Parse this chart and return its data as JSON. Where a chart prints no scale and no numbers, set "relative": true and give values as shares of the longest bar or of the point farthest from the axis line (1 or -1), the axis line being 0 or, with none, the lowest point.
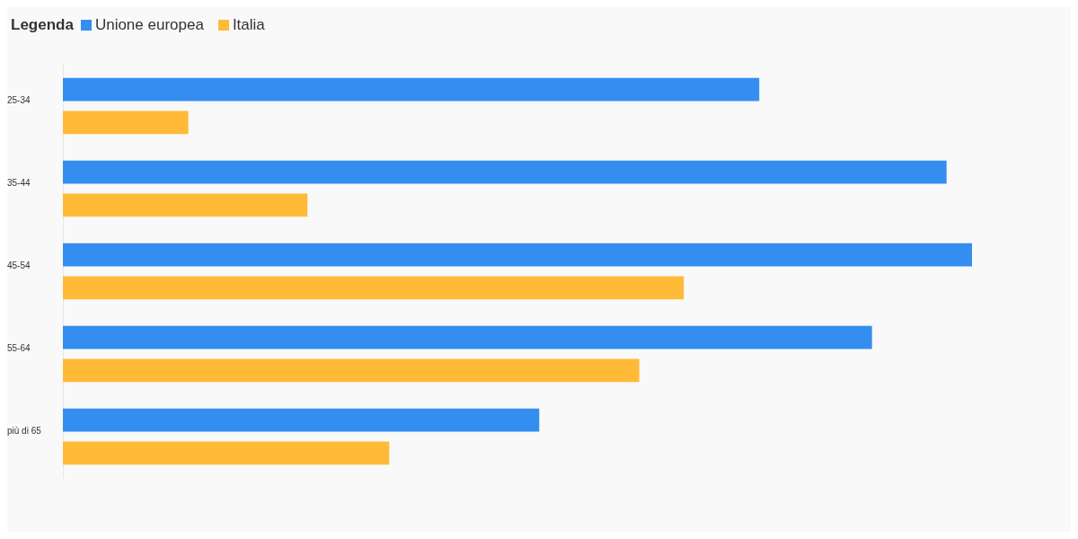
{
  "chart_data": {
    "type": "bar",
    "orientation": "horizontal",
    "relative": true,
    "legend_title": "Legenda",
    "legend": "top left",
    "categories": [
      "25-34",
      "35-44",
      "45-54",
      "55-64",
      "più di 65"
    ],
    "series": [
      {
        "name": "Unione europea",
        "color": "#338eef",
        "values": [
          0.766,
          0.972,
          1,
          0.89,
          0.524
        ]
      },
      {
        "name": "Italia",
        "color": "#ffba38",
        "values": [
          0.138,
          0.269,
          0.683,
          0.634,
          0.359
        ]
      }
    ]
  }
}
